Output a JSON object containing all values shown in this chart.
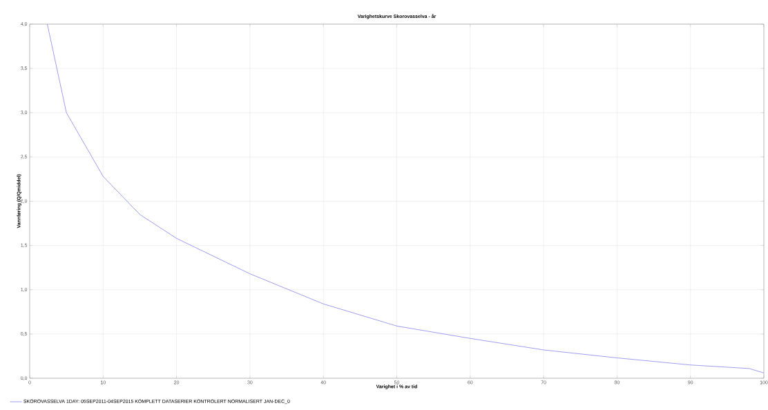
{
  "chart_data": {
    "type": "line",
    "title": "Varighetskurve Skorovasselva - år",
    "xlabel": "Varighet i % av tid",
    "ylabel": "Vannføring (Q/Qmiddel)",
    "x": [
      2.4,
      5,
      10,
      15,
      20,
      25,
      30,
      40,
      50,
      60,
      70,
      80,
      90,
      98,
      100
    ],
    "series": [
      {
        "name": "SKOROVASSELVA 1DAY: 05SEP2011-04SEP2015 KOMPLETT DATASERIER KONTROLERT NORMALISERT JAN-DEC_0",
        "color": "#5a5ae6",
        "values": [
          4.0,
          3.0,
          2.28,
          1.85,
          1.58,
          1.38,
          1.18,
          0.84,
          0.59,
          0.45,
          0.32,
          0.23,
          0.15,
          0.11,
          0.06
        ]
      }
    ],
    "xlim": [
      0,
      100
    ],
    "ylim": [
      0,
      4
    ],
    "xticks": [
      0,
      10,
      20,
      30,
      40,
      50,
      60,
      70,
      80,
      90,
      100
    ],
    "yticks": [
      {
        "value": 0,
        "label": "0,0"
      },
      {
        "value": 0.5,
        "label": "0,5"
      },
      {
        "value": 1,
        "label": "1,0"
      },
      {
        "value": 1.5,
        "label": "1,5"
      },
      {
        "value": 2,
        "label": "2,0"
      },
      {
        "value": 2.5,
        "label": "2,5"
      },
      {
        "value": 3,
        "label": "3,0"
      },
      {
        "value": 3.5,
        "label": "3,5"
      },
      {
        "value": 4,
        "label": "4,0"
      }
    ],
    "grid": true,
    "legend": "bottom",
    "marker": "none",
    "line_style": "solid"
  }
}
